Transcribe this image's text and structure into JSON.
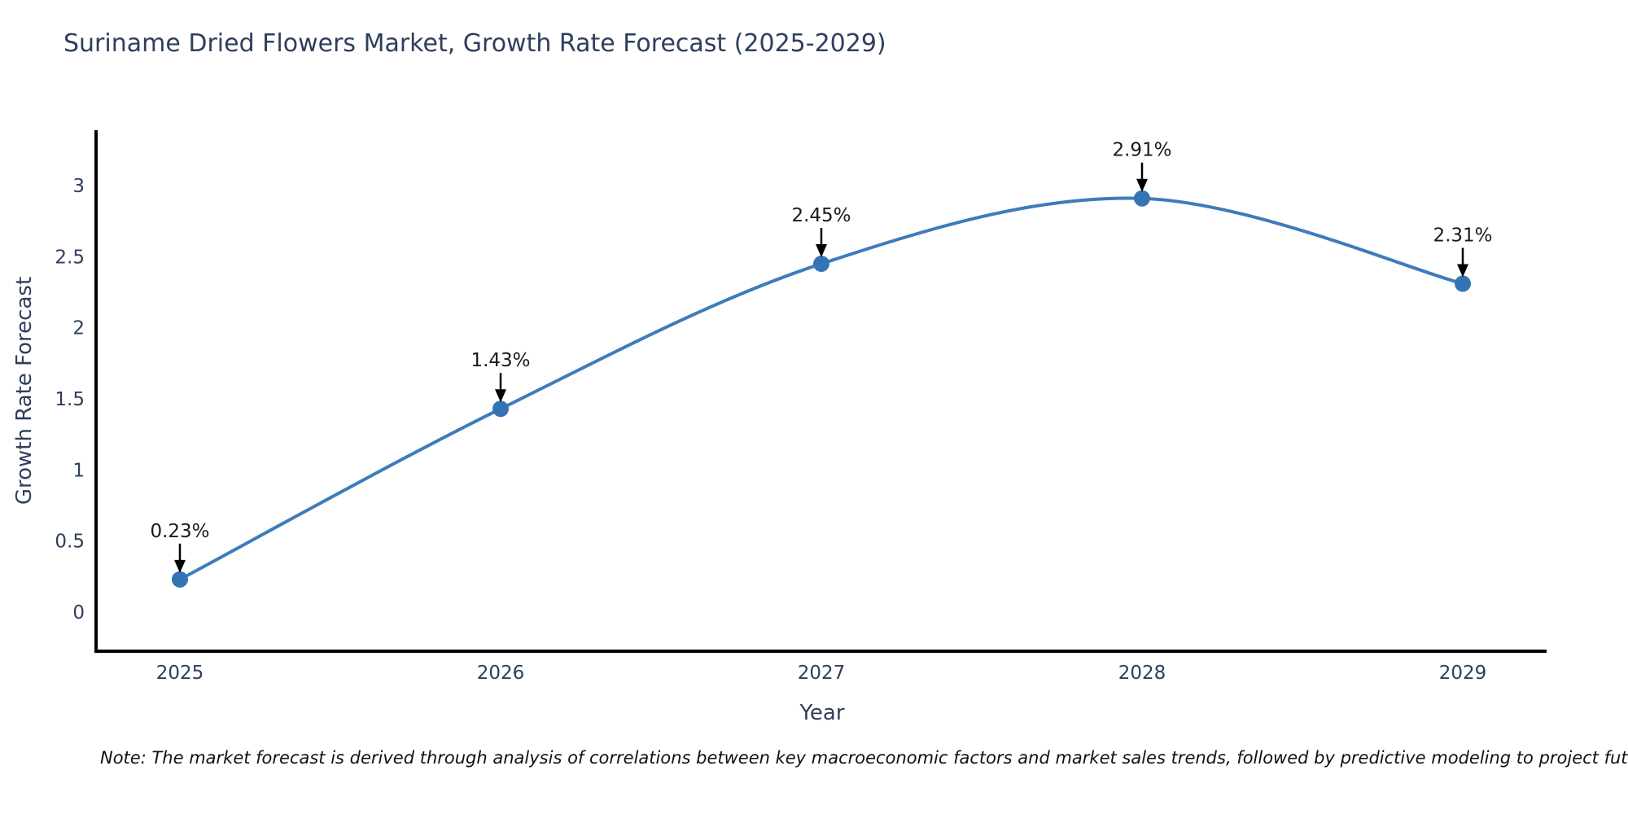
{
  "title": "Suriname Dried Flowers Market, Growth Rate Forecast (2025-2029)",
  "note": "Note: The market forecast is derived through analysis of correlations between key macroeconomic factors and market sales trends, followed by predictive modeling to project future sales",
  "chart_data": {
    "type": "line",
    "curve": "spline",
    "markers": true,
    "grid": false,
    "legend": "none",
    "title": "Suriname Dried Flowers Market, Growth Rate Forecast (2025-2029)",
    "xlabel": "Year",
    "ylabel": "Growth Rate Forecast",
    "x": [
      2025,
      2026,
      2027,
      2028,
      2029
    ],
    "values": [
      0.23,
      1.43,
      2.45,
      2.91,
      2.31
    ],
    "point_labels": [
      "0.23%",
      "1.43%",
      "2.45%",
      "2.91%",
      "2.31%"
    ],
    "x_tick_labels": [
      "2025",
      "2026",
      "2027",
      "2028",
      "2029"
    ],
    "y_ticks": [
      0,
      0.5,
      1,
      1.5,
      2,
      2.5,
      3
    ],
    "y_tick_labels": [
      "0",
      "0.5",
      "1",
      "1.5",
      "2",
      "2.5",
      "3"
    ],
    "ylim": [
      -0.28,
      3.39
    ],
    "colors": {
      "line": "#3d7cba",
      "marker": "#3474b4",
      "annotation_text": "#1a1a1a",
      "annotation_arrow": "#000000",
      "spine": "#000000",
      "tick_text": "#2e3f5c",
      "axis_title_text": "#2e3f5c",
      "title_text": "#2e3f5c",
      "background": "#ffffff"
    }
  }
}
